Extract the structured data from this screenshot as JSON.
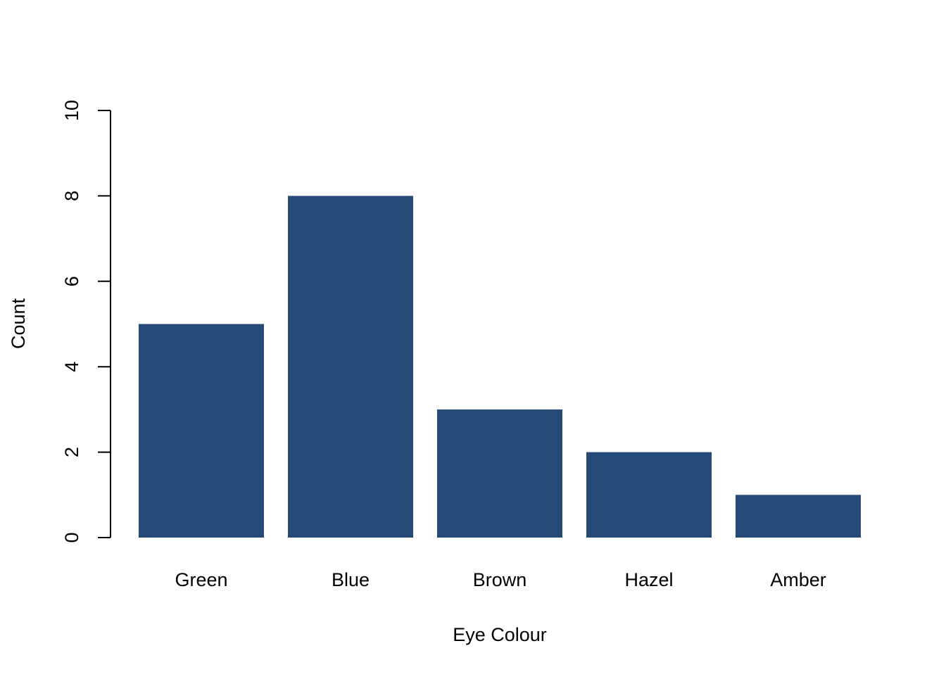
{
  "chart_data": {
    "type": "bar",
    "categories": [
      "Green",
      "Blue",
      "Brown",
      "Hazel",
      "Amber"
    ],
    "values": [
      5,
      8,
      3,
      2,
      1
    ],
    "title": "",
    "xlabel": "Eye Colour",
    "ylabel": "Count",
    "ylim": [
      0,
      10
    ],
    "yticks": [
      0,
      2,
      4,
      6,
      8,
      10
    ],
    "bar_color": "#254a77",
    "grid": false,
    "legend": "none"
  }
}
